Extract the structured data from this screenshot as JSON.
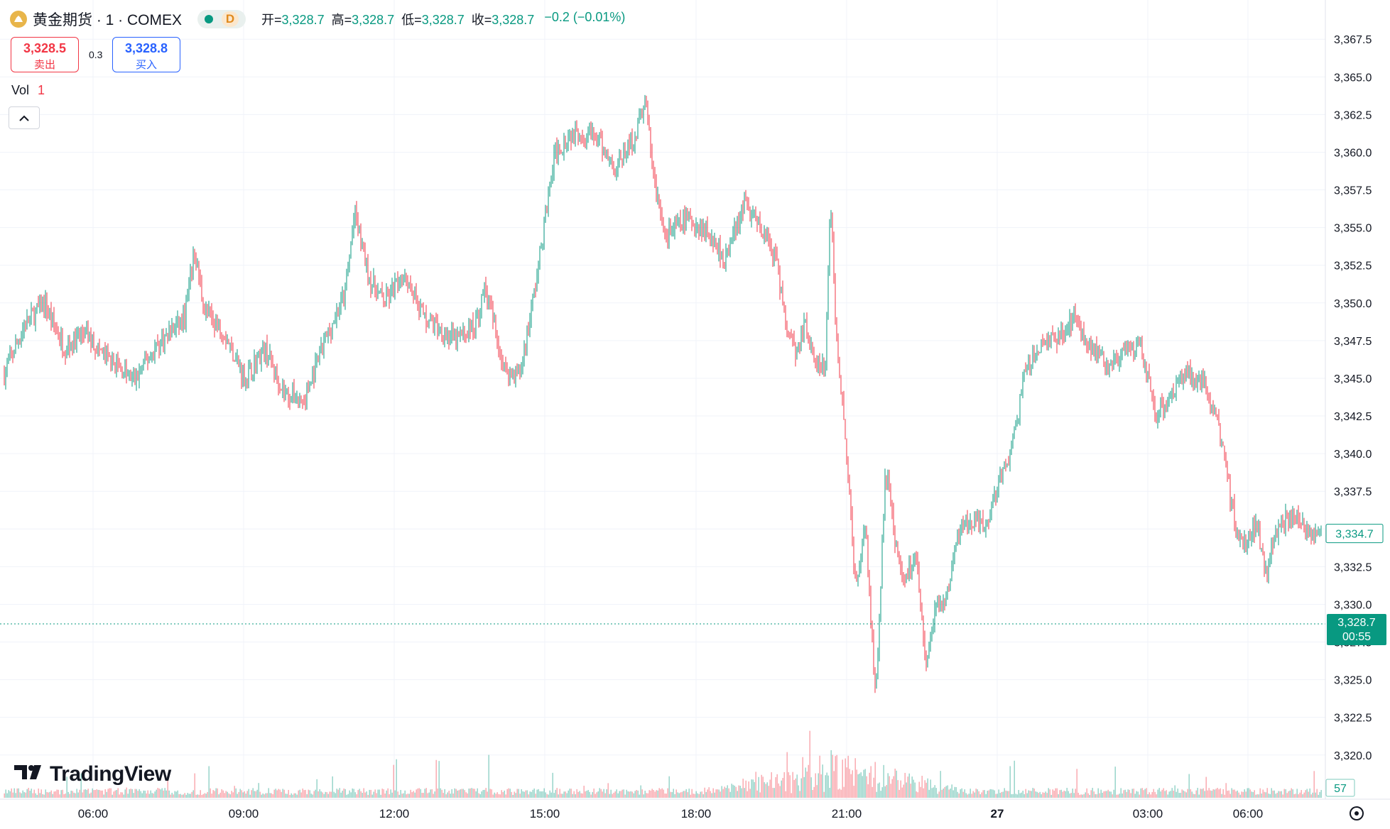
{
  "header": {
    "symbol": "黄金期货 · 1 · COMEX",
    "market_status": "D",
    "ohlc": {
      "open_label": "开=",
      "open": "3,328.7",
      "high_label": "高=",
      "high": "3,328.7",
      "low_label": "低=",
      "low": "3,328.7",
      "close_label": "收=",
      "close": "3,328.7",
      "change": "−0.2 (−0.01%)"
    }
  },
  "trade": {
    "sell_price": "3,328.5",
    "sell_label": "卖出",
    "spread": "0.3",
    "buy_price": "3,328.8",
    "buy_label": "买入"
  },
  "volume_legend": {
    "label": "Vol",
    "value": "1"
  },
  "branding": {
    "logo_text": "TradingView"
  },
  "colors": {
    "up": "#089981",
    "down": "#f23645",
    "grid": "#f0f3fa",
    "axis_text": "#131722",
    "last_price_bg": "#089981"
  },
  "chart_data": {
    "type": "candlestick",
    "price_axis": {
      "ylim": [
        3319,
        3368.5
      ],
      "ticks": [
        "3,320.0",
        "3,322.5",
        "3,325.0",
        "3,327.5",
        "3,330.0",
        "3,332.5",
        "3,335.0",
        "3,337.5",
        "3,340.0",
        "3,342.5",
        "3,345.0",
        "3,347.5",
        "3,350.0",
        "3,352.5",
        "3,355.0",
        "3,357.5",
        "3,360.0",
        "3,362.5",
        "3,365.0",
        "3,367.5"
      ]
    },
    "time_axis": {
      "ticks": [
        "06:00",
        "09:00",
        "12:00",
        "15:00",
        "18:00",
        "21:00",
        "27",
        "03:00",
        "06:00"
      ]
    },
    "last_price": {
      "value": 3328.7,
      "label": "3,328.7",
      "countdown": "00:55"
    },
    "marker_price": {
      "value": 3334.7,
      "label": "3,334.7"
    },
    "volume_marker": {
      "value": 57,
      "label": "57"
    },
    "price_path": [
      [
        0,
        3345.3
      ],
      [
        4,
        3348.5
      ],
      [
        8,
        3350.0
      ],
      [
        12,
        3347.0
      ],
      [
        16,
        3348.0
      ],
      [
        20,
        3346.5
      ],
      [
        26,
        3344.8
      ],
      [
        30,
        3347.0
      ],
      [
        36,
        3349.0
      ],
      [
        38,
        3353.5
      ],
      [
        40,
        3349.5
      ],
      [
        44,
        3348.0
      ],
      [
        48,
        3345.0
      ],
      [
        52,
        3347.0
      ],
      [
        56,
        3344.0
      ],
      [
        60,
        3343.5
      ],
      [
        64,
        3347.5
      ],
      [
        68,
        3350.5
      ],
      [
        70,
        3356.0
      ],
      [
        73,
        3351.5
      ],
      [
        76,
        3350.0
      ],
      [
        80,
        3352.0
      ],
      [
        84,
        3349.0
      ],
      [
        90,
        3347.5
      ],
      [
        94,
        3348.5
      ],
      [
        96,
        3351.0
      ],
      [
        100,
        3345.5
      ],
      [
        103,
        3345.3
      ],
      [
        106,
        3351.0
      ],
      [
        110,
        3360.0
      ],
      [
        114,
        3361.5
      ],
      [
        118,
        3361.0
      ],
      [
        122,
        3359.0
      ],
      [
        126,
        3361.0
      ],
      [
        128,
        3363.5
      ],
      [
        130,
        3357.5
      ],
      [
        132,
        3354.5
      ],
      [
        136,
        3355.5
      ],
      [
        140,
        3355.0
      ],
      [
        144,
        3353.0
      ],
      [
        148,
        3356.5
      ],
      [
        151,
        3355.0
      ],
      [
        154,
        3353.0
      ],
      [
        156,
        3349.0
      ],
      [
        158,
        3346.5
      ],
      [
        160,
        3348.5
      ],
      [
        162,
        3346.0
      ],
      [
        164,
        3345.5
      ],
      [
        165,
        3357.0
      ],
      [
        166,
        3349.0
      ],
      [
        168,
        3341.0
      ],
      [
        170,
        3331.0
      ],
      [
        172,
        3335.5
      ],
      [
        174,
        3323.5
      ],
      [
        176,
        3339.0
      ],
      [
        178,
        3334.0
      ],
      [
        180,
        3331.5
      ],
      [
        182,
        3333.5
      ],
      [
        184,
        3326.0
      ],
      [
        186,
        3329.5
      ],
      [
        188,
        3330.0
      ],
      [
        190,
        3334.5
      ],
      [
        193,
        3335.5
      ],
      [
        196,
        3335.0
      ],
      [
        198,
        3337.5
      ],
      [
        201,
        3340.0
      ],
      [
        204,
        3345.5
      ],
      [
        208,
        3347.5
      ],
      [
        212,
        3348.0
      ],
      [
        214,
        3349.5
      ],
      [
        216,
        3347.5
      ],
      [
        220,
        3346.0
      ],
      [
        224,
        3346.5
      ],
      [
        227,
        3347.0
      ],
      [
        230,
        3342.5
      ],
      [
        234,
        3344.5
      ],
      [
        236,
        3345.5
      ],
      [
        240,
        3344.5
      ],
      [
        242,
        3342.5
      ],
      [
        244,
        3339.0
      ],
      [
        246,
        3335.0
      ],
      [
        248,
        3334.0
      ],
      [
        250,
        3335.5
      ],
      [
        252,
        3332.0
      ],
      [
        254,
        3335.0
      ],
      [
        257,
        3336.0
      ],
      [
        260,
        3335.0
      ],
      [
        263,
        3334.7
      ]
    ],
    "volume": {
      "baseline_spikes_at_index": [
        164,
        165,
        166,
        170,
        174,
        176,
        184,
        186
      ]
    }
  }
}
